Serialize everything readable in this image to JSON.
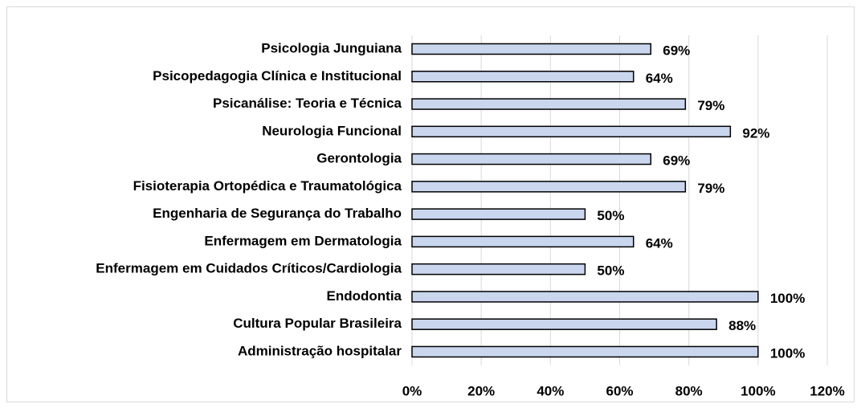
{
  "chart_data": {
    "type": "bar",
    "orientation": "horizontal",
    "categories": [
      "Psicologia Junguiana",
      "Psicopedagogia Clínica e Institucional",
      "Psicanálise: Teoria e Técnica",
      "Neurologia Funcional",
      "Gerontologia",
      "Fisioterapia Ortopédica e Traumatológica",
      "Engenharia de Segurança do Trabalho",
      "Enfermagem em Dermatologia",
      "Enfermagem em Cuidados Críticos/Cardiologia",
      "Endodontia",
      "Cultura Popular Brasileira",
      "Administração hospitalar"
    ],
    "values": [
      69,
      64,
      79,
      92,
      69,
      79,
      50,
      64,
      50,
      100,
      88,
      100
    ],
    "value_labels": [
      "69%",
      "64%",
      "79%",
      "92%",
      "69%",
      "79%",
      "50%",
      "64%",
      "50%",
      "100%",
      "88%",
      "100%"
    ],
    "color": "#c9d6ee",
    "xlim": [
      0,
      120
    ],
    "xticks": [
      {
        "value": 0,
        "label": "0%"
      },
      {
        "value": 20,
        "label": "20%"
      },
      {
        "value": 40,
        "label": "40%"
      },
      {
        "value": 60,
        "label": "60%"
      },
      {
        "value": 80,
        "label": "80%"
      },
      {
        "value": 100,
        "label": "100%"
      },
      {
        "value": 120,
        "label": "120%"
      }
    ],
    "grid": true
  }
}
